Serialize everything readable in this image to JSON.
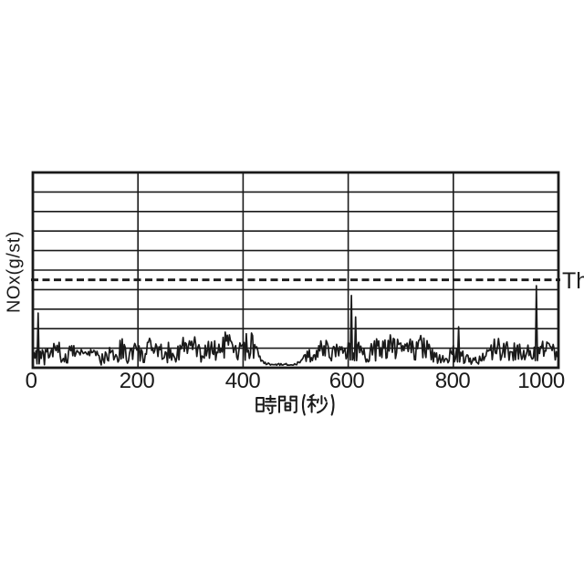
{
  "figure": {
    "background": "#ffffff",
    "ink_color": "#1a1a1a"
  },
  "chart_data": {
    "type": "line",
    "title": "",
    "xlabel": "時間(秒)",
    "ylabel": "NOx(g/st)",
    "xlim": [
      0,
      1000
    ],
    "ylim": [
      0,
      10
    ],
    "y_divisions": 10,
    "y_tick_labels_visible": false,
    "grid": "on",
    "xticks": [
      0,
      200,
      400,
      600,
      800,
      1000
    ],
    "xtick_labels": [
      "0",
      "200",
      "400",
      "600",
      "800",
      "1000"
    ],
    "x_gridlines": [
      200,
      400,
      600,
      800
    ],
    "threshold": {
      "label": "Th",
      "value": 4.5,
      "style": "dashed"
    },
    "series": [
      {
        "name": "NOx",
        "sampling_note": "noisy signal approximated by 10 s envelope entries [t_sec, min, max] in y-grid units, plus isolated spikes",
        "envelope": [
          [
            0,
            0.3,
            1.2
          ],
          [
            10,
            0.2,
            1.0
          ],
          [
            20,
            0.1,
            0.9
          ],
          [
            30,
            0.2,
            1.1
          ],
          [
            40,
            0.3,
            1.5
          ],
          [
            50,
            0.3,
            1.4
          ],
          [
            60,
            0.1,
            0.5
          ],
          [
            70,
            0.2,
            1.7
          ],
          [
            80,
            0.55,
            1.0
          ],
          [
            90,
            0.6,
            0.95
          ],
          [
            100,
            0.6,
            0.95
          ],
          [
            110,
            0.6,
            0.95
          ],
          [
            120,
            0.5,
            0.9
          ],
          [
            130,
            0.1,
            0.6
          ],
          [
            140,
            0.3,
            1.5
          ],
          [
            150,
            0.2,
            1.9
          ],
          [
            160,
            0.1,
            1.0
          ],
          [
            170,
            0.3,
            1.9
          ],
          [
            180,
            0.1,
            0.7
          ],
          [
            190,
            0.4,
            1.5
          ],
          [
            200,
            0.3,
            1.3
          ],
          [
            210,
            0.2,
            0.8
          ],
          [
            220,
            0.4,
            1.5
          ],
          [
            230,
            0.5,
            1.6
          ],
          [
            240,
            0.3,
            1.1
          ],
          [
            250,
            0.2,
            1.4
          ],
          [
            260,
            0.3,
            1.3
          ],
          [
            270,
            0.2,
            0.9
          ],
          [
            280,
            0.4,
            1.6
          ],
          [
            290,
            0.5,
            1.7
          ],
          [
            300,
            0.3,
            1.8
          ],
          [
            310,
            0.4,
            1.6
          ],
          [
            320,
            0.2,
            1.0
          ],
          [
            330,
            0.3,
            1.5
          ],
          [
            340,
            0.4,
            1.7
          ],
          [
            350,
            0.2,
            1.2
          ],
          [
            360,
            0.4,
            1.9
          ],
          [
            370,
            0.5,
            1.8
          ],
          [
            380,
            0.4,
            1.6
          ],
          [
            390,
            0.2,
            1.1
          ],
          [
            400,
            0.3,
            1.6
          ],
          [
            410,
            0.3,
            1.9
          ],
          [
            420,
            0.4,
            1.8
          ],
          [
            430,
            0.2,
            0.8
          ],
          [
            440,
            0.15,
            0.3
          ],
          [
            450,
            0.12,
            0.25
          ],
          [
            460,
            0.12,
            0.22
          ],
          [
            470,
            0.12,
            0.22
          ],
          [
            480,
            0.12,
            0.22
          ],
          [
            490,
            0.12,
            0.22
          ],
          [
            500,
            0.12,
            0.25
          ],
          [
            510,
            0.15,
            0.4
          ],
          [
            520,
            0.2,
            0.9
          ],
          [
            530,
            0.3,
            1.1
          ],
          [
            540,
            0.3,
            1.2
          ],
          [
            550,
            0.4,
            1.5
          ],
          [
            560,
            0.4,
            1.4
          ],
          [
            570,
            0.3,
            1.2
          ],
          [
            580,
            0.6,
            1.3
          ],
          [
            590,
            0.5,
            1.2
          ],
          [
            600,
            0.4,
            1.4
          ],
          [
            610,
            0.4,
            1.4
          ],
          [
            620,
            0.3,
            1.3
          ],
          [
            630,
            0.2,
            1.1
          ],
          [
            640,
            0.3,
            1.3
          ],
          [
            650,
            0.3,
            1.6
          ],
          [
            660,
            0.4,
            1.7
          ],
          [
            670,
            0.3,
            1.5
          ],
          [
            680,
            0.5,
            1.8
          ],
          [
            690,
            0.4,
            1.7
          ],
          [
            700,
            0.3,
            1.3
          ],
          [
            710,
            0.5,
            1.8
          ],
          [
            720,
            0.4,
            1.7
          ],
          [
            730,
            0.3,
            1.4
          ],
          [
            740,
            0.5,
            1.8
          ],
          [
            750,
            0.3,
            1.4
          ],
          [
            760,
            0.2,
            1.0
          ],
          [
            770,
            0.2,
            0.9
          ],
          [
            780,
            0.2,
            0.8
          ],
          [
            790,
            0.25,
            1.0
          ],
          [
            800,
            0.3,
            1.2
          ],
          [
            810,
            0.3,
            1.1
          ],
          [
            820,
            0.2,
            0.8
          ],
          [
            830,
            0.15,
            0.6
          ],
          [
            840,
            0.15,
            0.5
          ],
          [
            850,
            0.2,
            0.7
          ],
          [
            860,
            0.2,
            0.8
          ],
          [
            870,
            0.3,
            1.4
          ],
          [
            880,
            0.4,
            1.6
          ],
          [
            890,
            0.3,
            1.5
          ],
          [
            900,
            0.4,
            1.6
          ],
          [
            910,
            0.3,
            1.2
          ],
          [
            920,
            0.4,
            1.4
          ],
          [
            930,
            0.4,
            1.5
          ],
          [
            940,
            0.4,
            1.3
          ],
          [
            950,
            0.3,
            1.2
          ],
          [
            960,
            0.4,
            1.3
          ],
          [
            970,
            0.4,
            1.5
          ],
          [
            980,
            0.5,
            1.4
          ],
          [
            990,
            0.4,
            1.3
          ],
          [
            1000,
            0.3,
            1.0
          ]
        ],
        "spikes": [
          {
            "t": 10,
            "v": 2.8
          },
          {
            "t": 605,
            "v": 3.7
          },
          {
            "t": 613,
            "v": 2.6
          },
          {
            "t": 810,
            "v": 2.1
          },
          {
            "t": 957,
            "v": 4.2
          }
        ]
      }
    ]
  }
}
